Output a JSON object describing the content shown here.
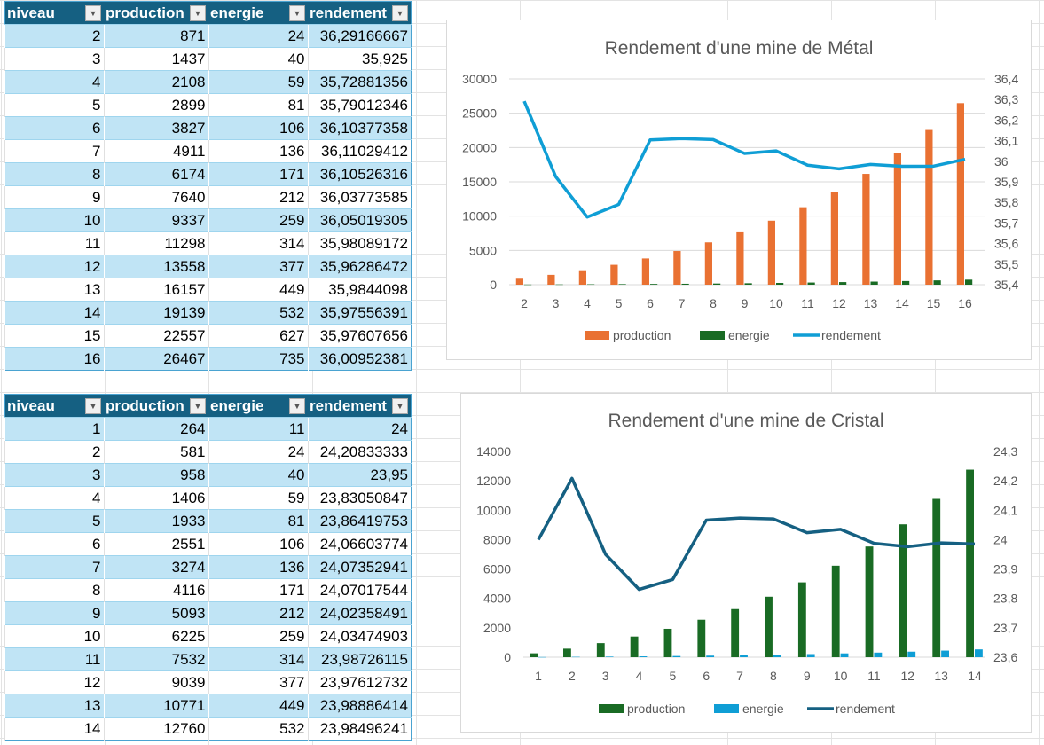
{
  "tables": [
    {
      "headers": [
        "niveau",
        "production",
        "energie",
        "rendement"
      ],
      "rows": [
        [
          "2",
          "871",
          "24",
          "36,29166667"
        ],
        [
          "3",
          "1437",
          "40",
          "35,925"
        ],
        [
          "4",
          "2108",
          "59",
          "35,72881356"
        ],
        [
          "5",
          "2899",
          "81",
          "35,79012346"
        ],
        [
          "6",
          "3827",
          "106",
          "36,10377358"
        ],
        [
          "7",
          "4911",
          "136",
          "36,11029412"
        ],
        [
          "8",
          "6174",
          "171",
          "36,10526316"
        ],
        [
          "9",
          "7640",
          "212",
          "36,03773585"
        ],
        [
          "10",
          "9337",
          "259",
          "36,05019305"
        ],
        [
          "11",
          "11298",
          "314",
          "35,98089172"
        ],
        [
          "12",
          "13558",
          "377",
          "35,96286472"
        ],
        [
          "13",
          "16157",
          "449",
          "35,9844098"
        ],
        [
          "14",
          "19139",
          "532",
          "35,97556391"
        ],
        [
          "15",
          "22557",
          "627",
          "35,97607656"
        ],
        [
          "16",
          "26467",
          "735",
          "36,00952381"
        ]
      ]
    },
    {
      "headers": [
        "niveau",
        "production",
        "energie",
        "rendement"
      ],
      "rows": [
        [
          "1",
          "264",
          "11",
          "24"
        ],
        [
          "2",
          "581",
          "24",
          "24,20833333"
        ],
        [
          "3",
          "958",
          "40",
          "23,95"
        ],
        [
          "4",
          "1406",
          "59",
          "23,83050847"
        ],
        [
          "5",
          "1933",
          "81",
          "23,86419753"
        ],
        [
          "6",
          "2551",
          "106",
          "24,06603774"
        ],
        [
          "7",
          "3274",
          "136",
          "24,07352941"
        ],
        [
          "8",
          "4116",
          "171",
          "24,07017544"
        ],
        [
          "9",
          "5093",
          "212",
          "24,02358491"
        ],
        [
          "10",
          "6225",
          "259",
          "24,03474903"
        ],
        [
          "11",
          "7532",
          "314",
          "23,98726115"
        ],
        [
          "12",
          "9039",
          "377",
          "23,97612732"
        ],
        [
          "13",
          "10771",
          "449",
          "23,98886414"
        ],
        [
          "14",
          "12760",
          "532",
          "23,98496241"
        ]
      ]
    }
  ],
  "chart_data": [
    {
      "type": "bar+line",
      "title": "Rendement d'une mine de Métal",
      "categories": [
        "2",
        "3",
        "4",
        "5",
        "6",
        "7",
        "8",
        "9",
        "10",
        "11",
        "12",
        "13",
        "14",
        "15",
        "16"
      ],
      "y_ticks": [
        "0",
        "5000",
        "10000",
        "15000",
        "20000",
        "25000",
        "30000"
      ],
      "ylim": [
        0,
        30000
      ],
      "y2_ticks": [
        "35,4",
        "35,5",
        "35,6",
        "35,7",
        "35,8",
        "35,9",
        "36",
        "36,1",
        "36,2",
        "36,3",
        "36,4"
      ],
      "y2lim": [
        35.4,
        36.4
      ],
      "legend": "bottom",
      "grid": true,
      "series": [
        {
          "name": "production",
          "kind": "bar",
          "axis": "left",
          "color": "#E97132",
          "values": [
            871,
            1437,
            2108,
            2899,
            3827,
            4911,
            6174,
            7640,
            9337,
            11298,
            13558,
            16157,
            19139,
            22557,
            26467
          ]
        },
        {
          "name": "energie",
          "kind": "bar",
          "axis": "left",
          "color": "#196B24",
          "values": [
            24,
            40,
            59,
            81,
            106,
            136,
            171,
            212,
            259,
            314,
            377,
            449,
            532,
            627,
            735
          ]
        },
        {
          "name": "rendement",
          "kind": "line",
          "axis": "right",
          "color": "#0F9ED5",
          "values": [
            36.2917,
            35.925,
            35.7288,
            35.7901,
            36.1038,
            36.1103,
            36.1053,
            36.0377,
            36.0502,
            35.9809,
            35.9629,
            35.9844,
            35.9756,
            35.9761,
            36.0095
          ]
        }
      ]
    },
    {
      "type": "bar+line",
      "title": "Rendement d'une mine de Cristal",
      "categories": [
        "1",
        "2",
        "3",
        "4",
        "5",
        "6",
        "7",
        "8",
        "9",
        "10",
        "11",
        "12",
        "13",
        "14"
      ],
      "y_ticks": [
        "0",
        "2000",
        "4000",
        "6000",
        "8000",
        "10000",
        "12000",
        "14000"
      ],
      "ylim": [
        0,
        14000
      ],
      "y2_ticks": [
        "23,6",
        "23,7",
        "23,8",
        "23,9",
        "24",
        "24,1",
        "24,2",
        "24,3"
      ],
      "y2lim": [
        23.6,
        24.3
      ],
      "legend": "bottom",
      "grid": false,
      "series": [
        {
          "name": "production",
          "kind": "bar",
          "axis": "left",
          "color": "#196B24",
          "values": [
            264,
            581,
            958,
            1406,
            1933,
            2551,
            3274,
            4116,
            5093,
            6225,
            7532,
            9039,
            10771,
            12760
          ]
        },
        {
          "name": "energie",
          "kind": "bar",
          "axis": "left",
          "color": "#0F9ED5",
          "values": [
            11,
            24,
            40,
            59,
            81,
            106,
            136,
            171,
            212,
            259,
            314,
            377,
            449,
            532
          ]
        },
        {
          "name": "rendement",
          "kind": "line",
          "axis": "right",
          "color": "#156082",
          "values": [
            24,
            24.2083,
            23.95,
            23.8305,
            23.8642,
            24.066,
            24.0735,
            24.0702,
            24.0236,
            24.0347,
            23.9873,
            23.9761,
            23.9889,
            23.985
          ]
        }
      ]
    }
  ]
}
